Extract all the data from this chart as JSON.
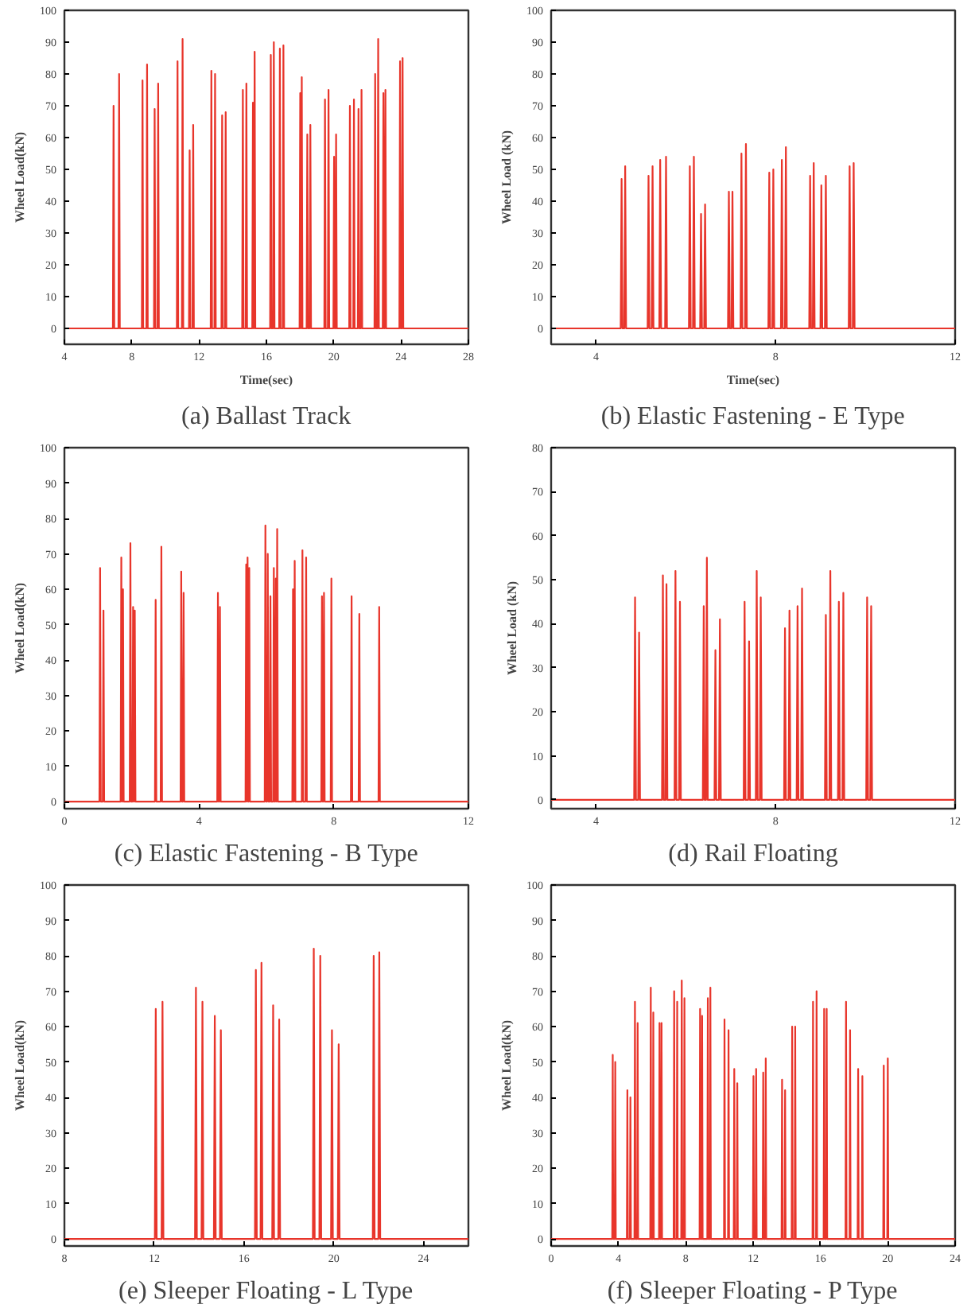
{
  "chart_data": [
    {
      "type": "line",
      "title": "(a) Ballast Track",
      "xlabel": "Time(sec)",
      "ylabel": "Wheel Load(kN)",
      "color": "#e8352b",
      "grid": false,
      "xlim": [
        4,
        28
      ],
      "xticks": [
        4,
        8,
        12,
        16,
        20,
        24,
        28
      ],
      "ylim": [
        -5,
        100
      ],
      "yticks": [
        0,
        10,
        20,
        30,
        40,
        50,
        60,
        70,
        80,
        90,
        100
      ],
      "x": [
        4,
        6.88,
        6.92,
        6.96,
        7.21,
        7.25,
        7.29,
        8.6,
        8.64,
        8.68,
        8.87,
        8.91,
        8.95,
        9.32,
        9.36,
        9.4,
        9.53,
        9.57,
        9.61,
        10.68,
        10.72,
        10.76,
        10.98,
        11.02,
        11.06,
        11.4,
        11.44,
        11.48,
        11.61,
        11.65,
        11.69,
        12.69,
        12.73,
        12.77,
        12.91,
        12.95,
        12.99,
        13.33,
        13.37,
        13.41,
        13.54,
        13.58,
        13.62,
        14.56,
        14.6,
        14.64,
        14.77,
        14.81,
        14.85,
        15.16,
        15.2,
        15.24,
        15.26,
        15.3,
        15.34,
        16.22,
        16.26,
        16.3,
        16.4,
        16.44,
        16.48,
        16.76,
        16.8,
        16.84,
        16.97,
        17.01,
        17.05,
        17.97,
        18.01,
        18.05,
        18.06,
        18.1,
        18.14,
        18.39,
        18.43,
        18.47,
        18.57,
        18.61,
        18.65,
        19.44,
        19.48,
        19.52,
        19.65,
        19.69,
        19.73,
        19.98,
        20.02,
        20.06,
        20.1,
        20.14,
        20.18,
        20.92,
        20.96,
        21.0,
        21.16,
        21.2,
        21.24,
        21.43,
        21.47,
        21.51,
        21.61,
        21.65,
        21.69,
        22.42,
        22.46,
        22.5,
        22.6,
        22.64,
        22.68,
        22.91,
        22.95,
        22.99,
        23.03,
        23.07,
        23.11,
        23.9,
        23.94,
        23.98,
        24.05,
        24.09,
        24.13,
        28
      ],
      "values": [
        0,
        0,
        70,
        0,
        0,
        80,
        0,
        0,
        78,
        0,
        0,
        83,
        0,
        0,
        69,
        0,
        0,
        77,
        0,
        0,
        84,
        0,
        0,
        91,
        0,
        0,
        56,
        0,
        0,
        64,
        0,
        0,
        81,
        0,
        0,
        80,
        0,
        0,
        67,
        0,
        0,
        68,
        0,
        0,
        75,
        0,
        0,
        77,
        0,
        0,
        71,
        0,
        0,
        87,
        0,
        0,
        86,
        0,
        0,
        90,
        0,
        0,
        88,
        0,
        0,
        89,
        0,
        0,
        74,
        0,
        0,
        79,
        0,
        0,
        61,
        0,
        0,
        64,
        0,
        0,
        72,
        0,
        0,
        75,
        0,
        0,
        54,
        0,
        0,
        61,
        0,
        0,
        70,
        0,
        0,
        72,
        0,
        0,
        69,
        0,
        0,
        75,
        0,
        0,
        80,
        0,
        0,
        91,
        0,
        0,
        74,
        0,
        0,
        75,
        0,
        0,
        84,
        0,
        0,
        85,
        0,
        0
      ]
    },
    {
      "type": "line",
      "title": "(b) Elastic Fastening - E Type",
      "xlabel": "Time(sec)",
      "ylabel": "Wheel Load (kN)",
      "color": "#e8352b",
      "grid": false,
      "xlim": [
        3,
        12
      ],
      "xticks": [
        4,
        8,
        12
      ],
      "ylim": [
        -5,
        100
      ],
      "yticks": [
        0,
        10,
        20,
        30,
        40,
        50,
        60,
        70,
        80,
        90,
        100
      ],
      "x": [
        3,
        4.55,
        4.57,
        4.59,
        4.63,
        4.65,
        4.67,
        5.15,
        5.17,
        5.19,
        5.24,
        5.26,
        5.28,
        5.41,
        5.43,
        5.45,
        5.54,
        5.56,
        5.58,
        6.07,
        6.09,
        6.11,
        6.16,
        6.18,
        6.2,
        6.32,
        6.34,
        6.36,
        6.41,
        6.43,
        6.45,
        6.94,
        6.96,
        6.98,
        7.02,
        7.04,
        7.06,
        7.22,
        7.24,
        7.26,
        7.32,
        7.34,
        7.36,
        7.84,
        7.86,
        7.88,
        7.93,
        7.95,
        7.97,
        8.12,
        8.14,
        8.16,
        8.21,
        8.23,
        8.25,
        8.75,
        8.77,
        8.79,
        8.83,
        8.85,
        8.87,
        9.0,
        9.02,
        9.04,
        9.1,
        9.12,
        9.14,
        9.63,
        9.65,
        9.67,
        9.72,
        9.74,
        9.76,
        12
      ],
      "values": [
        0,
        0,
        47,
        0,
        0,
        51,
        0,
        0,
        48,
        0,
        0,
        51,
        0,
        0,
        53,
        0,
        0,
        54,
        0,
        0,
        51,
        0,
        0,
        54,
        0,
        0,
        36,
        0,
        0,
        39,
        0,
        0,
        43,
        0,
        0,
        43,
        0,
        0,
        55,
        0,
        0,
        58,
        0,
        0,
        49,
        0,
        0,
        50,
        0,
        0,
        53,
        0,
        0,
        57,
        0,
        0,
        48,
        0,
        0,
        52,
        0,
        0,
        45,
        0,
        0,
        48,
        0,
        0,
        51,
        0,
        0,
        52,
        0,
        0
      ]
    },
    {
      "type": "line",
      "title": "(c) Elastic Fastening - B Type",
      "ylabel": "Wheel Load(kN)",
      "color": "#e8352b",
      "grid": false,
      "xlim": [
        0,
        12
      ],
      "xticks": [
        0,
        4,
        8,
        12
      ],
      "ylim": [
        -2,
        100
      ],
      "yticks": [
        0,
        10,
        20,
        30,
        40,
        50,
        60,
        70,
        80,
        90,
        100
      ],
      "x": [
        0,
        1.04,
        1.06,
        1.08,
        1.14,
        1.16,
        1.18,
        1.67,
        1.69,
        1.71,
        1.72,
        1.74,
        1.76,
        1.94,
        1.96,
        1.98,
        2.02,
        2.04,
        2.06,
        2.07,
        2.09,
        2.11,
        2.69,
        2.71,
        2.73,
        2.86,
        2.88,
        2.9,
        3.45,
        3.47,
        3.49,
        3.52,
        3.54,
        3.56,
        4.54,
        4.56,
        4.58,
        4.6,
        4.62,
        4.64,
        5.38,
        5.4,
        5.42,
        5.42,
        5.44,
        5.46,
        5.47,
        5.49,
        5.51,
        5.95,
        5.97,
        5.99,
        6.02,
        6.04,
        6.06,
        6.1,
        6.12,
        6.14,
        6.2,
        6.22,
        6.24,
        6.26,
        6.28,
        6.3,
        6.3,
        6.32,
        6.34,
        6.77,
        6.79,
        6.81,
        6.82,
        6.84,
        6.86,
        7.05,
        7.07,
        7.09,
        7.16,
        7.18,
        7.2,
        7.63,
        7.65,
        7.67,
        7.69,
        7.71,
        7.73,
        7.91,
        7.93,
        7.95,
        8.51,
        8.53,
        8.55,
        8.74,
        8.76,
        8.78,
        9.33,
        9.35,
        9.37,
        12
      ],
      "values": [
        0,
        0,
        66,
        0,
        0,
        54,
        0,
        0,
        69,
        0,
        0,
        60,
        0,
        0,
        73,
        0,
        0,
        55,
        0,
        0,
        54,
        0,
        0,
        57,
        0,
        0,
        72,
        0,
        0,
        65,
        0,
        0,
        59,
        0,
        0,
        59,
        0,
        0,
        55,
        0,
        0,
        67,
        0,
        0,
        69,
        0,
        0,
        66,
        0,
        0,
        78,
        0,
        0,
        70,
        0,
        0,
        58,
        0,
        0,
        66,
        0,
        0,
        63,
        0,
        0,
        77,
        0,
        0,
        60,
        0,
        0,
        68,
        0,
        0,
        71,
        0,
        0,
        69,
        0,
        0,
        58,
        0,
        0,
        59,
        0,
        0,
        63,
        0,
        0,
        58,
        0,
        0,
        53,
        0,
        0,
        55,
        0,
        0
      ]
    },
    {
      "type": "line",
      "title": "(d) Rail Floating",
      "ylabel": "Wheel Load (kN)",
      "color": "#e8352b",
      "grid": false,
      "xlim": [
        3,
        12
      ],
      "xticks": [
        4,
        8,
        12
      ],
      "ylim": [
        -2,
        80
      ],
      "yticks": [
        0,
        10,
        20,
        30,
        40,
        50,
        60,
        70,
        80
      ],
      "x": [
        3,
        4.85,
        4.87,
        4.89,
        4.94,
        4.96,
        4.98,
        5.47,
        5.49,
        5.51,
        5.55,
        5.57,
        5.59,
        5.75,
        5.77,
        5.79,
        5.85,
        5.87,
        5.89,
        6.38,
        6.4,
        6.42,
        6.45,
        6.47,
        6.49,
        6.64,
        6.66,
        6.68,
        6.74,
        6.76,
        6.78,
        7.29,
        7.31,
        7.33,
        7.39,
        7.41,
        7.43,
        7.56,
        7.58,
        7.6,
        7.65,
        7.67,
        7.69,
        8.19,
        8.21,
        8.23,
        8.29,
        8.31,
        8.33,
        8.47,
        8.49,
        8.51,
        8.57,
        8.59,
        8.61,
        9.1,
        9.12,
        9.14,
        9.2,
        9.22,
        9.24,
        9.39,
        9.41,
        9.43,
        9.49,
        9.51,
        9.53,
        10.02,
        10.04,
        10.06,
        10.11,
        10.13,
        10.15,
        12
      ],
      "values": [
        0,
        0,
        46,
        0,
        0,
        38,
        0,
        0,
        51,
        0,
        0,
        49,
        0,
        0,
        52,
        0,
        0,
        45,
        0,
        0,
        44,
        0,
        0,
        55,
        0,
        0,
        34,
        0,
        0,
        41,
        0,
        0,
        45,
        0,
        0,
        36,
        0,
        0,
        52,
        0,
        0,
        46,
        0,
        0,
        39,
        0,
        0,
        43,
        0,
        0,
        44,
        0,
        0,
        48,
        0,
        0,
        42,
        0,
        0,
        52,
        0,
        0,
        45,
        0,
        0,
        47,
        0,
        0,
        46,
        0,
        0,
        44,
        0,
        0
      ]
    },
    {
      "type": "line",
      "title": "(e) Sleeper Floating - L Type",
      "ylabel": "Wheel Load(kN)",
      "color": "#e8352b",
      "grid": false,
      "xlim": [
        8,
        26
      ],
      "xticks": [
        8,
        12,
        16,
        20,
        24
      ],
      "ylim": [
        -2,
        100
      ],
      "yticks": [
        0,
        10,
        20,
        30,
        40,
        50,
        60,
        70,
        80,
        90,
        100
      ],
      "x": [
        8,
        12.03,
        12.07,
        12.11,
        12.33,
        12.37,
        12.41,
        13.82,
        13.86,
        13.9,
        14.11,
        14.15,
        14.19,
        14.66,
        14.7,
        14.74,
        14.93,
        14.97,
        15.01,
        16.49,
        16.53,
        16.57,
        16.74,
        16.78,
        16.82,
        17.26,
        17.3,
        17.34,
        17.53,
        17.57,
        17.61,
        19.07,
        19.11,
        19.15,
        19.36,
        19.4,
        19.44,
        19.88,
        19.92,
        19.96,
        20.18,
        20.22,
        20.26,
        21.74,
        21.78,
        21.82,
        21.99,
        22.03,
        22.07,
        26
      ],
      "values": [
        0,
        0,
        65,
        0,
        0,
        67,
        0,
        0,
        71,
        0,
        0,
        67,
        0,
        0,
        63,
        0,
        0,
        59,
        0,
        0,
        76,
        0,
        0,
        78,
        0,
        0,
        66,
        0,
        0,
        62,
        0,
        0,
        82,
        0,
        0,
        80,
        0,
        0,
        59,
        0,
        0,
        55,
        0,
        0,
        80,
        0,
        0,
        81,
        0,
        0
      ]
    },
    {
      "type": "line",
      "title": "(f) Sleeper Floating - P Type",
      "ylabel": "Wheel Load(kN)",
      "color": "#e8352b",
      "grid": false,
      "xlim": [
        0,
        24
      ],
      "xticks": [
        0,
        4,
        8,
        12,
        16,
        20,
        24
      ],
      "ylim": [
        -2,
        100
      ],
      "yticks": [
        0,
        10,
        20,
        30,
        40,
        50,
        60,
        70,
        80,
        90,
        100
      ],
      "x": [
        0,
        3.63,
        3.66,
        3.69,
        3.78,
        3.81,
        3.84,
        4.5,
        4.53,
        4.56,
        4.68,
        4.71,
        4.74,
        4.95,
        4.98,
        5.01,
        5.11,
        5.14,
        5.17,
        5.89,
        5.92,
        5.95,
        6.04,
        6.07,
        6.1,
        6.41,
        6.44,
        6.47,
        6.53,
        6.56,
        6.59,
        7.28,
        7.31,
        7.34,
        7.46,
        7.49,
        7.52,
        7.73,
        7.76,
        7.79,
        7.89,
        7.92,
        7.95,
        8.82,
        8.85,
        8.88,
        8.94,
        8.97,
        9.0,
        9.28,
        9.31,
        9.34,
        9.43,
        9.46,
        9.49,
        10.27,
        10.3,
        10.33,
        10.51,
        10.54,
        10.57,
        10.85,
        10.88,
        10.91,
        11.03,
        11.06,
        11.09,
        11.99,
        12.02,
        12.05,
        12.15,
        12.18,
        12.21,
        12.57,
        12.6,
        12.63,
        12.72,
        12.75,
        12.78,
        13.69,
        13.72,
        13.75,
        13.87,
        13.9,
        13.93,
        14.29,
        14.32,
        14.35,
        14.47,
        14.5,
        14.53,
        15.53,
        15.56,
        15.59,
        15.74,
        15.77,
        15.8,
        16.19,
        16.22,
        16.25,
        16.34,
        16.37,
        16.4,
        17.49,
        17.52,
        17.55,
        17.73,
        17.76,
        17.79,
        18.21,
        18.24,
        18.27,
        18.46,
        18.49,
        18.52,
        19.73,
        19.76,
        19.79,
        19.97,
        20.0,
        20.03,
        24
      ],
      "values": [
        0,
        0,
        52,
        0,
        0,
        50,
        0,
        0,
        42,
        0,
        0,
        40,
        0,
        0,
        67,
        0,
        0,
        61,
        0,
        0,
        71,
        0,
        0,
        64,
        0,
        0,
        61,
        0,
        0,
        61,
        0,
        0,
        70,
        0,
        0,
        67,
        0,
        0,
        73,
        0,
        0,
        68,
        0,
        0,
        65,
        0,
        0,
        63,
        0,
        0,
        68,
        0,
        0,
        71,
        0,
        0,
        62,
        0,
        0,
        59,
        0,
        0,
        48,
        0,
        0,
        44,
        0,
        0,
        46,
        0,
        0,
        48,
        0,
        0,
        47,
        0,
        0,
        51,
        0,
        0,
        45,
        0,
        0,
        42,
        0,
        0,
        60,
        0,
        0,
        60,
        0,
        0,
        67,
        0,
        0,
        70,
        0,
        0,
        65,
        0,
        0,
        65,
        0,
        0,
        67,
        0,
        0,
        59,
        0,
        0,
        48,
        0,
        0,
        46,
        0,
        0,
        49,
        0,
        0,
        51,
        0,
        0
      ]
    }
  ]
}
